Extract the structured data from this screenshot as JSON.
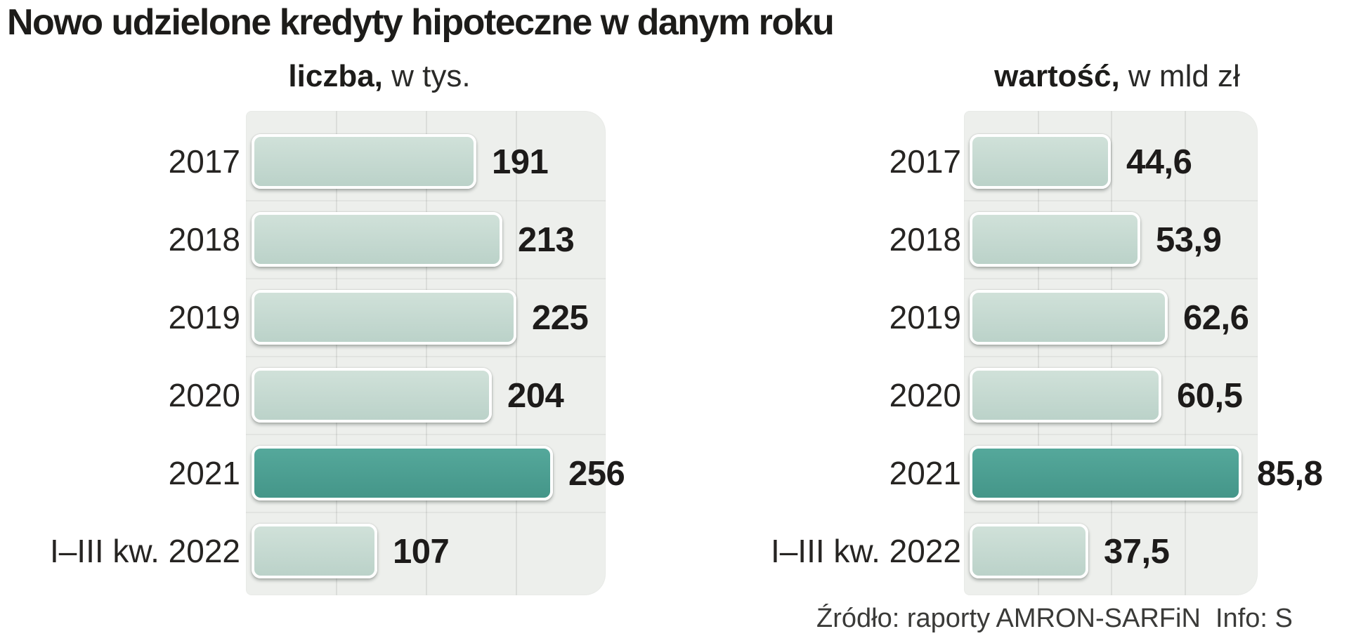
{
  "title": "Nowo udzielone kredyty hipoteczne w danym roku",
  "source_note": "Źródło: raporty AMRON-SARFiN  Info: S",
  "colors": {
    "bar_light": "#c6dad1",
    "bar_highlight": "#4a9d91",
    "panel_background": "#edefec",
    "gridline": "#dbddda",
    "text": "#221f20"
  },
  "chart_data": [
    {
      "type": "bar",
      "orientation": "horizontal",
      "title": "liczba, w tys.",
      "title_bold": "liczba,",
      "title_rest": " w tys.",
      "categories": [
        "2017",
        "2018",
        "2019",
        "2020",
        "2021",
        "I–III kw. 2022"
      ],
      "values": [
        191,
        213,
        225,
        204,
        256,
        107
      ],
      "value_labels": [
        "191",
        "213",
        "225",
        "204",
        "256",
        "107"
      ],
      "xlim": [
        0,
        300
      ],
      "highlight_index": 4,
      "highlight_category": "2021",
      "grid": "vertical light gridlines, no axis labels",
      "legend": "none"
    },
    {
      "type": "bar",
      "orientation": "horizontal",
      "title": "wartość, w mld zł",
      "title_bold": "wartość,",
      "title_rest": " w mld zł",
      "categories": [
        "2017",
        "2018",
        "2019",
        "2020",
        "2021",
        "I–III kw. 2022"
      ],
      "values": [
        44.6,
        53.9,
        62.6,
        60.5,
        85.8,
        37.5
      ],
      "value_labels": [
        "44,6",
        "53,9",
        "62,6",
        "60,5",
        "85,8",
        "37,5"
      ],
      "xlim": [
        0,
        91
      ],
      "highlight_index": 4,
      "highlight_category": "2021",
      "grid": "vertical light gridlines, no axis labels",
      "legend": "none"
    }
  ]
}
